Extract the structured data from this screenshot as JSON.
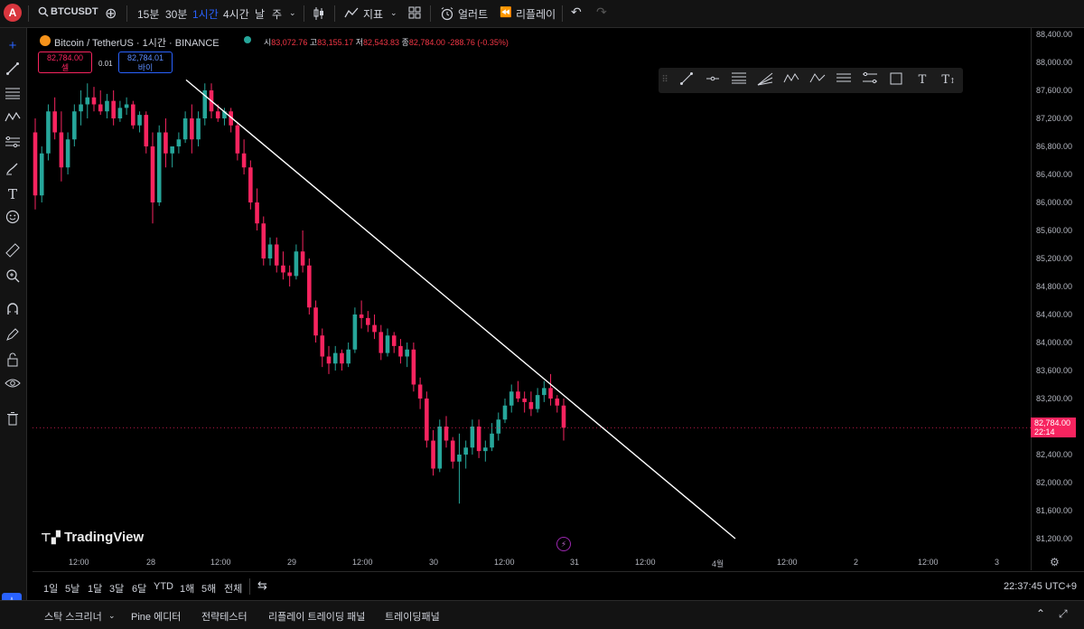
{
  "toolbar": {
    "avatar": "A",
    "symbol": "BTCUSDT",
    "intervals": [
      "15분",
      "30분",
      "1시간",
      "4시간",
      "날",
      "주"
    ],
    "active_interval": "1시간",
    "indicators": "지표",
    "alert": "얼러트",
    "replay": "리플레이"
  },
  "legend": {
    "title": "Bitcoin / TetherUS · 1시간 · BINANCE",
    "o_label": "시",
    "o": "83,072.76",
    "h_label": "고",
    "h": "83,155.17",
    "l_label": "저",
    "l": "82,543.83",
    "c_label": "종",
    "c": "82,784.00",
    "change": "-288.76 (-0.35%)",
    "sell_price": "82,784.00",
    "sell_label": "셀",
    "spread": "0.01",
    "buy_price": "82,784.01",
    "buy_label": "바이"
  },
  "price_axis": {
    "labels": [
      "88,400.00",
      "88,000.00",
      "87,600.00",
      "87,200.00",
      "86,800.00",
      "86,400.00",
      "86,000.00",
      "85,600.00",
      "85,200.00",
      "84,800.00",
      "84,400.00",
      "84,000.00",
      "83,600.00",
      "83,200.00",
      "82,400.00",
      "82,000.00",
      "81,600.00",
      "81,200.00"
    ],
    "current_price": "82,784.00",
    "countdown": "22:14"
  },
  "time_axis": {
    "labels": [
      "12:00",
      "28",
      "12:00",
      "29",
      "12:00",
      "30",
      "12:00",
      "31",
      "12:00",
      "4월",
      "12:00",
      "2",
      "12:00",
      "3"
    ]
  },
  "watermark": "TradingView",
  "range_bar": {
    "ranges": [
      "1일",
      "5날",
      "1달",
      "3달",
      "6달",
      "YTD",
      "1해",
      "5해",
      "전체"
    ],
    "clock": "22:37:45 UTC+9"
  },
  "bottom_panel": {
    "tabs": [
      "스탁 스크리너",
      "Pine 에디터",
      "전략테스터",
      "리플레이 트레이딩 패널",
      "트레이딩패널"
    ]
  },
  "colors": {
    "up": "#26a69a",
    "down": "#f7245f",
    "accent": "#2962ff",
    "trendline": "#ffffff"
  },
  "chart_data": {
    "type": "candlestick",
    "symbol": "BTCUSDT",
    "interval": "1h",
    "ylim": [
      81000,
      88500
    ],
    "candles": [
      [
        87000,
        87200,
        85900,
        86100
      ],
      [
        86100,
        86800,
        86000,
        86700
      ],
      [
        86700,
        87400,
        86600,
        87300
      ],
      [
        87300,
        87500,
        86900,
        87000
      ],
      [
        87000,
        87300,
        86300,
        86500
      ],
      [
        86500,
        87000,
        86400,
        86900
      ],
      [
        86900,
        87400,
        86800,
        87300
      ],
      [
        87300,
        87600,
        87100,
        87400
      ],
      [
        87400,
        87700,
        87200,
        87500
      ],
      [
        87500,
        87650,
        87300,
        87400
      ],
      [
        87400,
        87600,
        87250,
        87300
      ],
      [
        87300,
        87550,
        87200,
        87450
      ],
      [
        87450,
        87600,
        87100,
        87200
      ],
      [
        87200,
        87450,
        87150,
        87350
      ],
      [
        87350,
        87500,
        87250,
        87400
      ],
      [
        87400,
        87450,
        87050,
        87100
      ],
      [
        87100,
        87300,
        87000,
        87250
      ],
      [
        87250,
        87300,
        86700,
        86800
      ],
      [
        86800,
        87000,
        85700,
        86000
      ],
      [
        86000,
        87100,
        85950,
        87000
      ],
      [
        87000,
        87200,
        86500,
        86700
      ],
      [
        86700,
        86800,
        86500,
        86800
      ],
      [
        86800,
        87000,
        86700,
        86900
      ],
      [
        86900,
        87300,
        86850,
        87200
      ],
      [
        87200,
        87400,
        86700,
        86900
      ],
      [
        86900,
        87300,
        86800,
        87200
      ],
      [
        87200,
        87700,
        87100,
        87600
      ],
      [
        87600,
        87700,
        87200,
        87300
      ],
      [
        87300,
        87400,
        87150,
        87200
      ],
      [
        87200,
        87350,
        87100,
        87300
      ],
      [
        87300,
        87350,
        87000,
        87100
      ],
      [
        87100,
        87150,
        86600,
        86700
      ],
      [
        86700,
        86900,
        86400,
        86500
      ],
      [
        86500,
        86600,
        85900,
        86000
      ],
      [
        86000,
        86200,
        85600,
        85700
      ],
      [
        85700,
        85800,
        85100,
        85200
      ],
      [
        85200,
        85500,
        85100,
        85400
      ],
      [
        85400,
        85500,
        85000,
        85100
      ],
      [
        85100,
        85300,
        84900,
        85000
      ],
      [
        85000,
        85100,
        84800,
        84950
      ],
      [
        84950,
        85400,
        84900,
        85300
      ],
      [
        85300,
        85600,
        85000,
        85100
      ],
      [
        85100,
        85200,
        84400,
        84500
      ],
      [
        84500,
        84600,
        84000,
        84100
      ],
      [
        84100,
        84200,
        83650,
        83800
      ],
      [
        83800,
        83950,
        83550,
        83700
      ],
      [
        83700,
        83950,
        83600,
        83850
      ],
      [
        83850,
        83900,
        83600,
        83700
      ],
      [
        83700,
        84000,
        83650,
        83900
      ],
      [
        83900,
        84500,
        83850,
        84400
      ],
      [
        84400,
        84600,
        84200,
        84350
      ],
      [
        84350,
        84450,
        84150,
        84250
      ],
      [
        84250,
        84400,
        84050,
        84150
      ],
      [
        84150,
        84250,
        83750,
        83850
      ],
      [
        83850,
        84200,
        83800,
        84100
      ],
      [
        84100,
        84150,
        83850,
        83950
      ],
      [
        83950,
        84050,
        83700,
        83800
      ],
      [
        83800,
        84000,
        83650,
        83900
      ],
      [
        83900,
        84000,
        83300,
        83400
      ],
      [
        83400,
        83500,
        83050,
        83200
      ],
      [
        83200,
        83300,
        82500,
        82600
      ],
      [
        82600,
        82750,
        82100,
        82200
      ],
      [
        82200,
        82900,
        82150,
        82800
      ],
      [
        82800,
        82950,
        82500,
        82600
      ],
      [
        82600,
        82650,
        82200,
        82300
      ],
      [
        82300,
        82700,
        81700,
        82400
      ],
      [
        82400,
        82600,
        82200,
        82500
      ],
      [
        82500,
        82900,
        82400,
        82800
      ],
      [
        82800,
        82900,
        82350,
        82450
      ],
      [
        82450,
        82600,
        82300,
        82500
      ],
      [
        82500,
        82850,
        82450,
        82700
      ],
      [
        82700,
        83000,
        82600,
        82900
      ],
      [
        82900,
        83200,
        82850,
        83100
      ],
      [
        83100,
        83400,
        83000,
        83300
      ],
      [
        83300,
        83450,
        83150,
        83200
      ],
      [
        83200,
        83300,
        83000,
        83150
      ],
      [
        83150,
        83300,
        82950,
        83050
      ],
      [
        83050,
        83350,
        83000,
        83250
      ],
      [
        83250,
        83450,
        83150,
        83350
      ],
      [
        83350,
        83550,
        83100,
        83200
      ],
      [
        83200,
        83250,
        83000,
        83100
      ],
      [
        83100,
        83200,
        82600,
        82784
      ]
    ],
    "trendline": [
      [
        87750,
        0
      ],
      [
        81200,
        1
      ]
    ]
  }
}
